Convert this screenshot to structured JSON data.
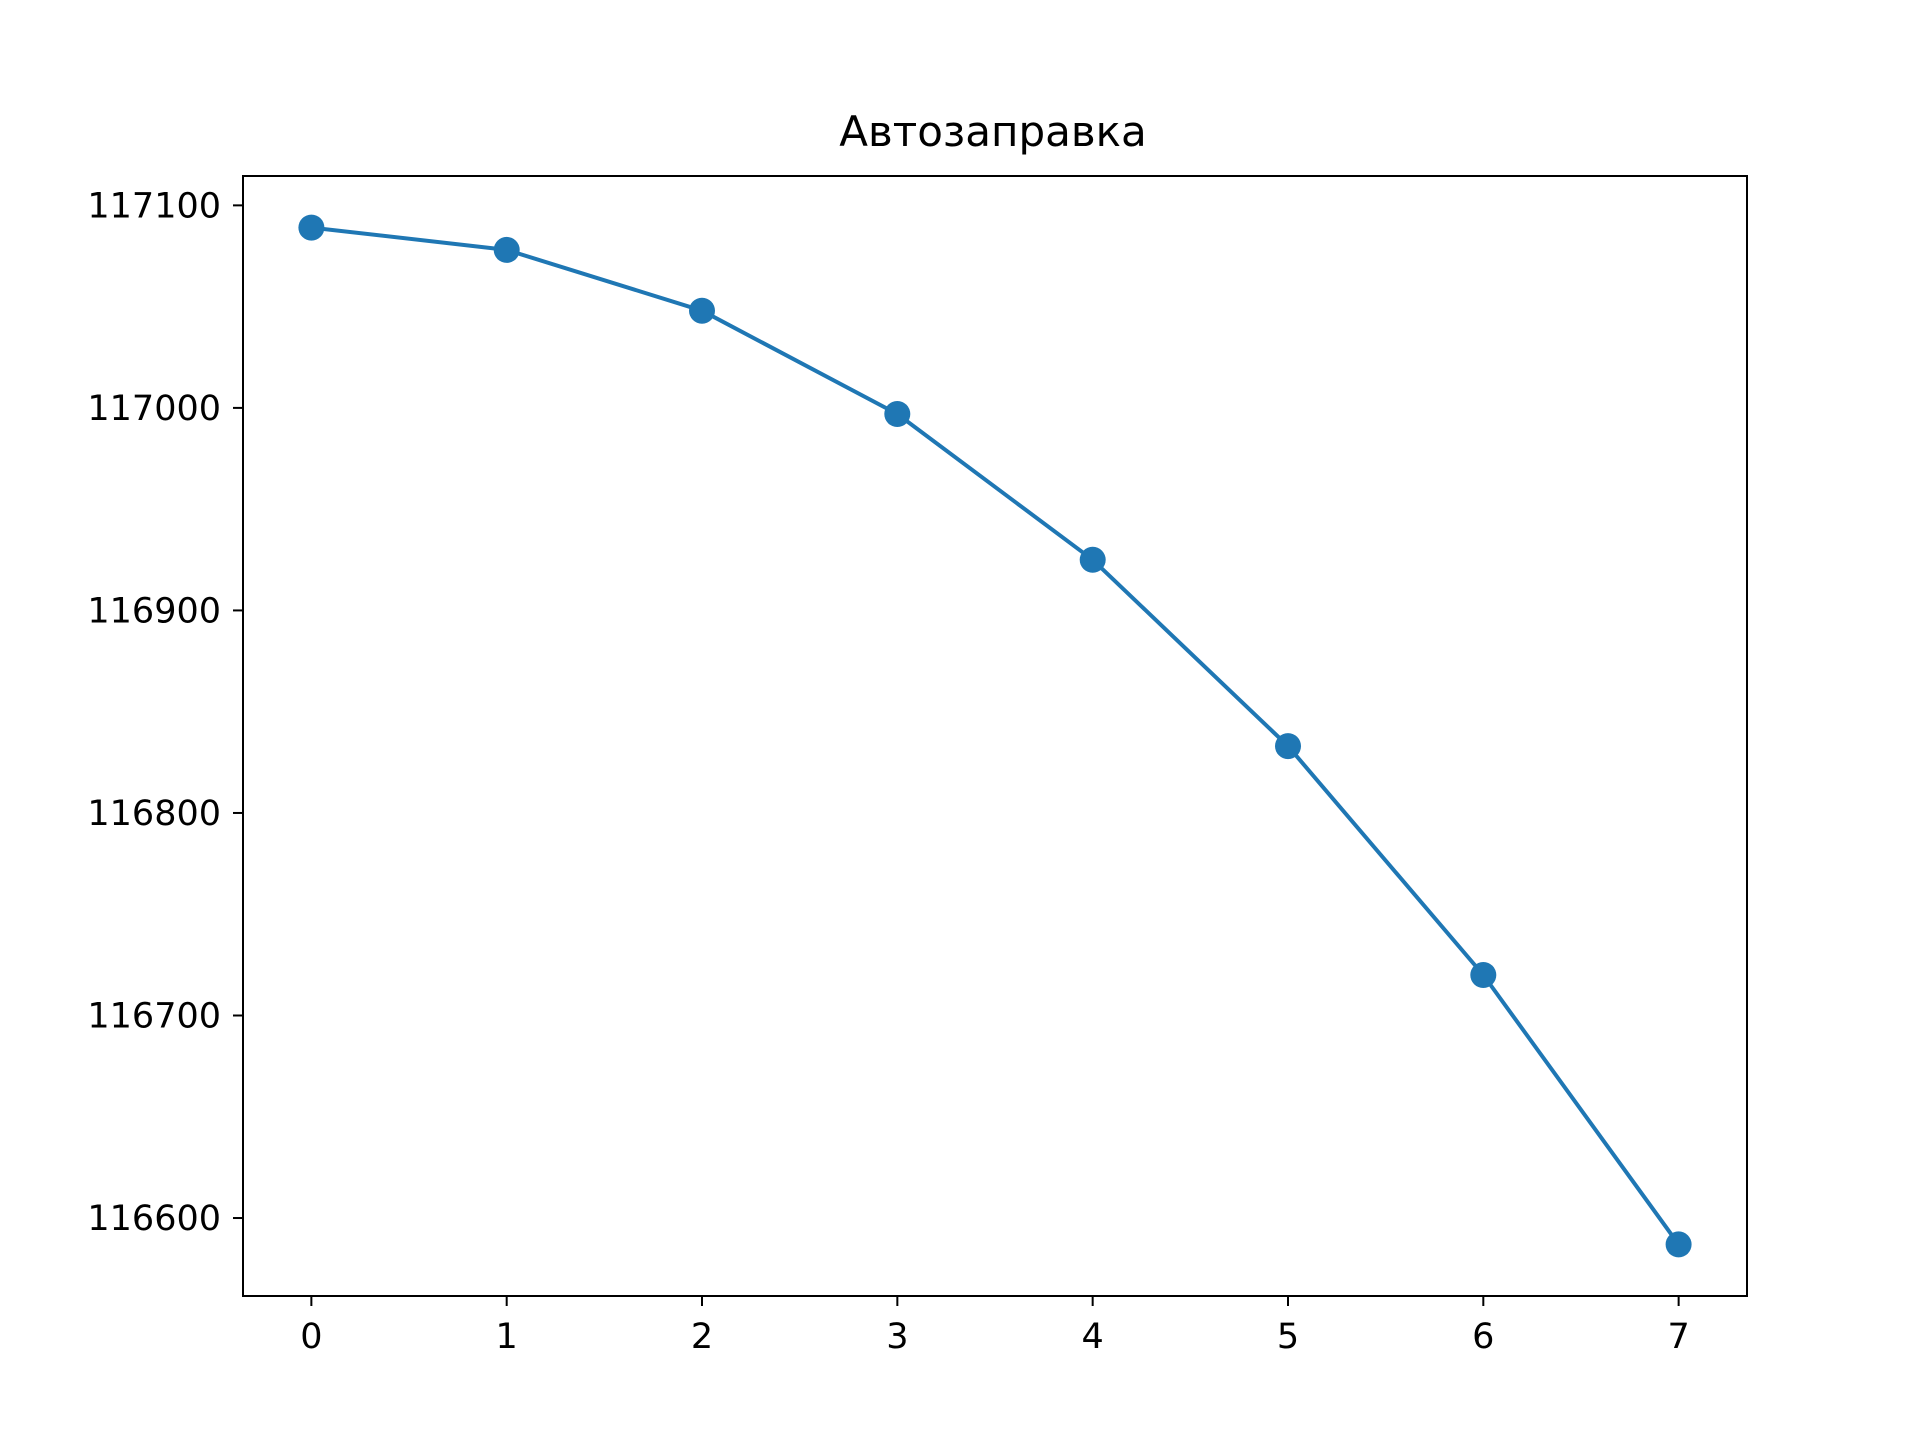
{
  "chart_data": {
    "type": "line",
    "title": "Автозаправка",
    "xlabel": "",
    "ylabel": "",
    "x": [
      0,
      1,
      2,
      3,
      4,
      5,
      6,
      7
    ],
    "series": [
      {
        "values": [
          117089,
          117078,
          117048,
          116997,
          116925,
          116833,
          116720,
          116587
        ],
        "color": "#1f77b4",
        "marker": "circle"
      }
    ],
    "xlim": [
      -0.35,
      7.35
    ],
    "ylim": [
      116561.5,
      117114.5
    ],
    "xticks": [
      "0",
      "1",
      "2",
      "3",
      "4",
      "5",
      "6",
      "7"
    ],
    "yticks": [
      "116600",
      "116700",
      "116800",
      "116900",
      "117000",
      "117100"
    ],
    "grid": false,
    "legend": "none"
  }
}
